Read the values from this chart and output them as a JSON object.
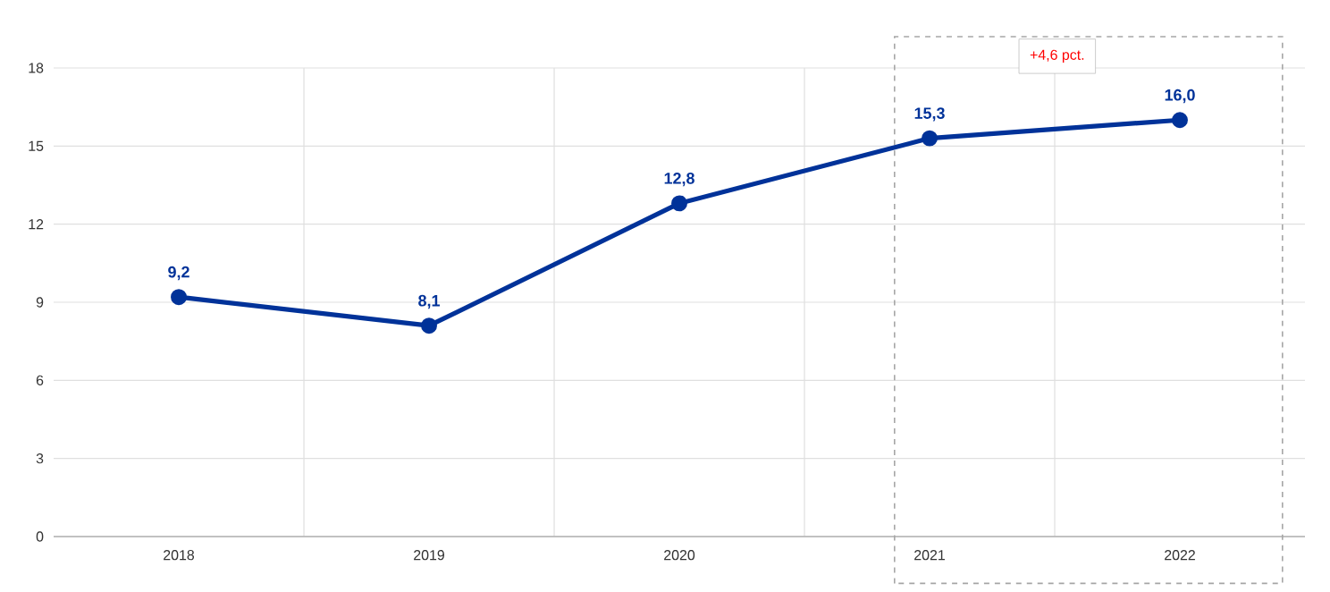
{
  "chart_data": {
    "type": "line",
    "categories": [
      "2018",
      "2019",
      "2020",
      "2021",
      "2022"
    ],
    "series": [
      {
        "color": "#003299",
        "values": [
          9.2,
          8.1,
          12.8,
          15.3,
          16.0
        ],
        "value_labels": [
          "9,2",
          "8,1",
          "12,8",
          "15,3",
          "16,0"
        ]
      }
    ],
    "ylim": [
      0,
      18
    ],
    "yticks": [
      0,
      3,
      6,
      9,
      12,
      15,
      18
    ],
    "grid": true,
    "marker": "circle",
    "line_style": "solid",
    "annotations": [
      "+4,6 pct."
    ]
  }
}
